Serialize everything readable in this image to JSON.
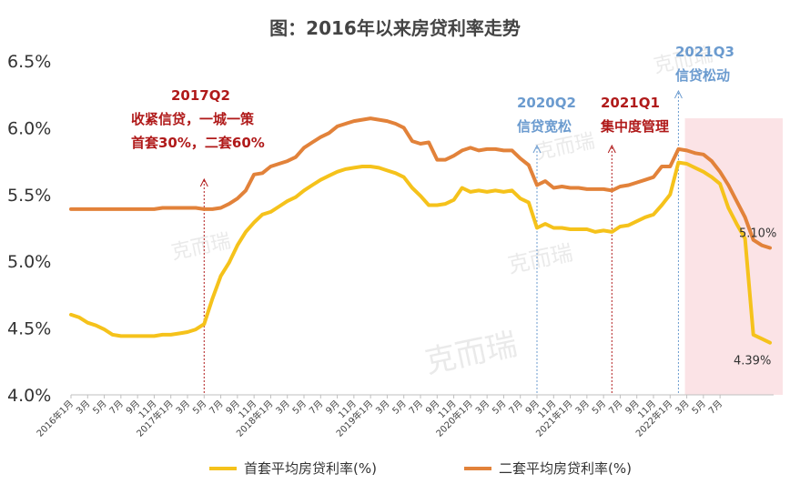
{
  "chart_data": {
    "type": "line",
    "title": "图：2016年以来房贷利率走势",
    "ylim": [
      4.0,
      6.5
    ],
    "yticks": [
      "4.0%",
      "4.5%",
      "5.0%",
      "5.5%",
      "6.0%",
      "6.5%"
    ],
    "grid": false,
    "legend_position": "bottom",
    "x_tick_labels": [
      "2016年1月",
      "3月",
      "5月",
      "7月",
      "9月",
      "11月",
      "2017年1月",
      "3月",
      "5月",
      "7月",
      "9月",
      "11月",
      "2018年1月",
      "3月",
      "5月",
      "7月",
      "9月",
      "11月",
      "2019年1月",
      "3月",
      "5月",
      "7月",
      "9月",
      "11月",
      "2020年1月",
      "3月",
      "5月",
      "7月",
      "9月",
      "11月",
      "2021年1月",
      "3月",
      "5月",
      "7月",
      "9月",
      "11月",
      "2022年1月",
      "3月",
      "5月",
      "7月"
    ],
    "series": [
      {
        "name": "首套平均房贷利率(%)",
        "color": "#F5C21B",
        "values": [
          4.6,
          4.58,
          4.54,
          4.52,
          4.49,
          4.45,
          4.44,
          4.44,
          4.44,
          4.44,
          4.44,
          4.45,
          4.45,
          4.46,
          4.47,
          4.49,
          4.53,
          4.72,
          4.89,
          4.99,
          5.12,
          5.22,
          5.29,
          5.35,
          5.37,
          5.41,
          5.45,
          5.48,
          5.53,
          5.57,
          5.61,
          5.64,
          5.67,
          5.69,
          5.7,
          5.71,
          5.71,
          5.7,
          5.68,
          5.66,
          5.63,
          5.55,
          5.49,
          5.42,
          5.42,
          5.43,
          5.46,
          5.55,
          5.52,
          5.53,
          5.52,
          5.53,
          5.52,
          5.53,
          5.47,
          5.44,
          5.25,
          5.28,
          5.25,
          5.25,
          5.24,
          5.24,
          5.24,
          5.22,
          5.23,
          5.22,
          5.26,
          5.27,
          5.3,
          5.33,
          5.35,
          5.42,
          5.5,
          5.74,
          5.73,
          5.7,
          5.67,
          5.63,
          5.58,
          5.4,
          5.28,
          5.17,
          4.45,
          4.42,
          4.39
        ]
      },
      {
        "name": "二套平均房贷利率(%)",
        "color": "#E2823A",
        "values": [
          5.39,
          5.39,
          5.39,
          5.39,
          5.39,
          5.39,
          5.39,
          5.39,
          5.39,
          5.39,
          5.39,
          5.4,
          5.4,
          5.4,
          5.4,
          5.4,
          5.39,
          5.39,
          5.4,
          5.43,
          5.47,
          5.53,
          5.65,
          5.66,
          5.71,
          5.73,
          5.75,
          5.78,
          5.85,
          5.89,
          5.93,
          5.96,
          6.01,
          6.03,
          6.05,
          6.06,
          6.07,
          6.06,
          6.05,
          6.03,
          6.0,
          5.9,
          5.88,
          5.89,
          5.76,
          5.76,
          5.79,
          5.83,
          5.85,
          5.83,
          5.84,
          5.84,
          5.83,
          5.83,
          5.77,
          5.72,
          5.57,
          5.6,
          5.55,
          5.56,
          5.55,
          5.55,
          5.54,
          5.54,
          5.54,
          5.53,
          5.56,
          5.57,
          5.59,
          5.61,
          5.63,
          5.71,
          5.71,
          5.84,
          5.83,
          5.81,
          5.8,
          5.75,
          5.67,
          5.57,
          5.45,
          5.33,
          5.16,
          5.12,
          5.1
        ]
      }
    ],
    "end_labels": [
      "5.10%",
      "4.39%"
    ],
    "annotations": [
      {
        "lines": [
          "2017Q2",
          "收紧信贷，一城一策",
          "首套30%，二套60%"
        ],
        "color": "#B01A1A",
        "index": 16
      },
      {
        "lines": [
          "2020Q2",
          "信贷宽松"
        ],
        "color": "#6B9BCF",
        "index": 56
      },
      {
        "lines": [
          "2021Q1",
          "集中度管理"
        ],
        "color": "#B01A1A",
        "index": 65
      },
      {
        "lines": [
          "2021Q3",
          "信贷松动"
        ],
        "color": "#6B9BCF",
        "index": 73
      }
    ],
    "shaded_region": {
      "from_index": 74,
      "to_index": 84,
      "color": "#FBE3E6"
    },
    "watermark": "克而瑞"
  }
}
